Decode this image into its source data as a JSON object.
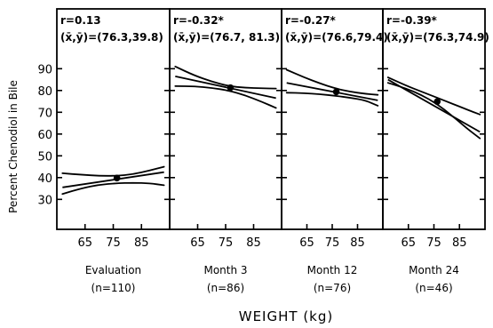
{
  "chart_data": {
    "type": "line",
    "ylabel": "Percent Chenodiol in Bile",
    "xlabel": "WEIGHT  (kg)",
    "ylim": [
      20,
      100
    ],
    "y_ticks": [
      30,
      40,
      50,
      60,
      70,
      80,
      90
    ],
    "xlim": [
      55,
      95
    ],
    "x_ticks": [
      65,
      75,
      85
    ],
    "panels": [
      {
        "title": "Evaluation",
        "n_label": "(n=110)",
        "r_label": "r=0.13",
        "mean_label": "(x̄,ȳ)=(76.3,39.8)",
        "mean_point": {
          "x": 76.3,
          "y": 39.8
        },
        "fit": {
          "x": [
            57,
            93
          ],
          "y": [
            35.5,
            42.5
          ]
        },
        "ci_upper": {
          "x": [
            57,
            64,
            70,
            76,
            82,
            88,
            93
          ],
          "y": [
            42.0,
            41.3,
            40.8,
            40.8,
            41.5,
            43.3,
            45.0
          ]
        },
        "ci_lower": {
          "x": [
            57,
            64,
            70,
            76,
            82,
            88,
            93
          ],
          "y": [
            32.5,
            35.2,
            36.7,
            37.4,
            37.6,
            37.4,
            36.5
          ]
        }
      },
      {
        "title": "Month 3",
        "n_label": "(n=86)",
        "r_label": "r=-0.32*",
        "mean_label": "(x̄,ȳ)=(76.7, 81.3)",
        "mean_point": {
          "x": 76.7,
          "y": 81.3
        },
        "fit": {
          "x": [
            57,
            93
          ],
          "y": [
            86.5,
            76.5
          ]
        },
        "ci_upper": {
          "x": [
            57,
            64,
            70,
            76,
            82,
            88,
            93
          ],
          "y": [
            91.0,
            86.8,
            84.1,
            82.0,
            81.3,
            81.0,
            80.9
          ]
        },
        "ci_lower": {
          "x": [
            57,
            64,
            70,
            76,
            82,
            88,
            93
          ],
          "y": [
            82.0,
            81.9,
            81.2,
            80.0,
            77.8,
            74.8,
            72.0
          ]
        }
      },
      {
        "title": "Month 12",
        "n_label": "(n=76)",
        "r_label": "r=-0.27*",
        "mean_label": "(x̄,ȳ)=(76.6,79.4)",
        "mean_point": {
          "x": 76.6,
          "y": 79.4
        },
        "fit": {
          "x": [
            57,
            93
          ],
          "y": [
            83.5,
            75.5
          ]
        },
        "ci_upper": {
          "x": [
            57,
            64,
            70,
            76,
            82,
            88,
            93
          ],
          "y": [
            89.5,
            86.0,
            83.3,
            81.0,
            79.5,
            78.5,
            78.0
          ]
        },
        "ci_lower": {
          "x": [
            57,
            64,
            70,
            76,
            82,
            88,
            93
          ],
          "y": [
            79.0,
            78.8,
            78.3,
            77.6,
            76.7,
            75.5,
            73.0
          ]
        }
      },
      {
        "title": "Month 24",
        "n_label": "(n=46)",
        "r_label": "r=-0.39*",
        "mean_label": "(x̄,ȳ)=(76.3,74.9)",
        "mean_point": {
          "x": 76.3,
          "y": 74.9
        },
        "fit": {
          "x": [
            57,
            93
          ],
          "y": [
            85.0,
            61.0
          ]
        },
        "ci_upper": {
          "x": [
            57,
            64,
            70,
            76,
            82,
            88,
            93
          ],
          "y": [
            86.0,
            82.3,
            79.5,
            76.8,
            74.0,
            71.2,
            69.0
          ]
        },
        "ci_lower": {
          "x": [
            57,
            64,
            70,
            76,
            82,
            88,
            93
          ],
          "y": [
            83.5,
            81.0,
            78.0,
            74.0,
            68.5,
            62.5,
            58.0
          ]
        }
      }
    ]
  }
}
